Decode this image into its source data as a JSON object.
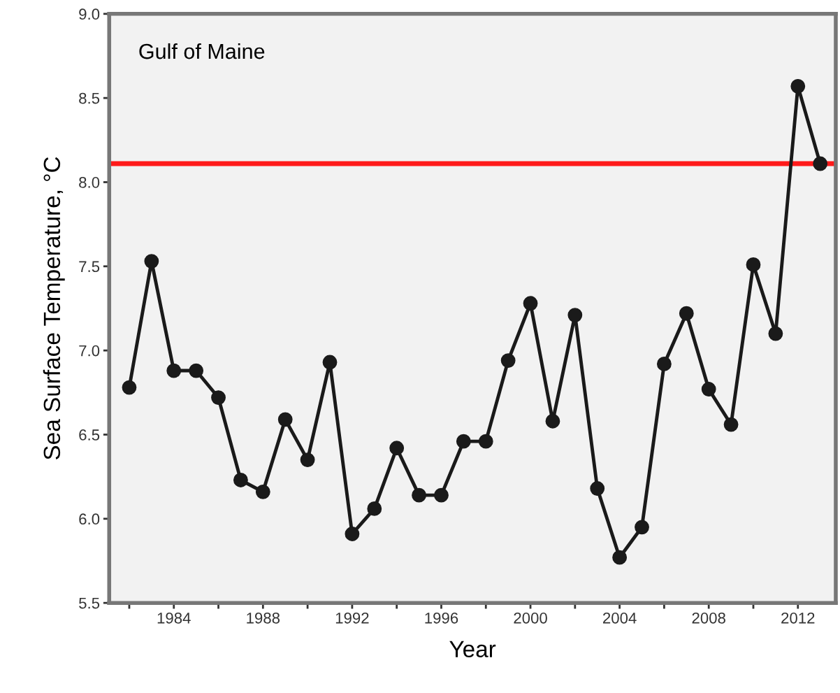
{
  "chart_data": {
    "type": "line",
    "xlabel": "Year",
    "ylabel": "Sea Surface Temperature, °C",
    "annotations": [
      "Gulf of Maine"
    ],
    "x": [
      1982,
      1983,
      1984,
      1985,
      1986,
      1987,
      1988,
      1989,
      1990,
      1991,
      1992,
      1993,
      1994,
      1995,
      1996,
      1997,
      1998,
      1999,
      2000,
      2001,
      2002,
      2003,
      2004,
      2005,
      2006,
      2007,
      2008,
      2009,
      2010,
      2011,
      2012,
      2013
    ],
    "series": [
      {
        "color": "#1a1a1a",
        "values": [
          6.78,
          7.53,
          6.88,
          6.88,
          6.72,
          6.23,
          6.16,
          6.59,
          6.35,
          6.93,
          5.91,
          6.06,
          6.42,
          6.14,
          6.14,
          6.46,
          6.46,
          6.94,
          7.28,
          6.58,
          7.21,
          6.18,
          5.77,
          5.95,
          6.92,
          7.22,
          6.77,
          6.56,
          7.51,
          7.1,
          8.57,
          8.11
        ]
      }
    ],
    "ref_lines": [
      {
        "axis": "y",
        "value": 8.11,
        "color": "#ff1a1a"
      }
    ],
    "xlim": [
      1981.1,
      2013.7
    ],
    "xticks": [
      {
        "value": 1982,
        "label": null
      },
      {
        "value": 1984,
        "label": "1984"
      },
      {
        "value": 1986,
        "label": null
      },
      {
        "value": 1988,
        "label": "1988"
      },
      {
        "value": 1990,
        "label": null
      },
      {
        "value": 1992,
        "label": "1992"
      },
      {
        "value": 1994,
        "label": null
      },
      {
        "value": 1996,
        "label": "1996"
      },
      {
        "value": 1998,
        "label": null
      },
      {
        "value": 2000,
        "label": "2000"
      },
      {
        "value": 2002,
        "label": null
      },
      {
        "value": 2004,
        "label": "2004"
      },
      {
        "value": 2006,
        "label": null
      },
      {
        "value": 2008,
        "label": "2008"
      },
      {
        "value": 2010,
        "label": null
      },
      {
        "value": 2012,
        "label": "2012"
      }
    ],
    "ylim": [
      5.5,
      9.0
    ],
    "yticks": [
      {
        "value": 5.5,
        "label": "5.5"
      },
      {
        "value": 6.0,
        "label": "6.0"
      },
      {
        "value": 6.5,
        "label": "6.5"
      },
      {
        "value": 7.0,
        "label": "7.0"
      },
      {
        "value": 7.5,
        "label": "7.5"
      },
      {
        "value": 8.0,
        "label": "8.0"
      },
      {
        "value": 8.5,
        "label": "8.5"
      },
      {
        "value": 9.0,
        "label": "9.0"
      }
    ],
    "marker": "circle",
    "line_style": "solid",
    "grid": false,
    "legend": false
  }
}
